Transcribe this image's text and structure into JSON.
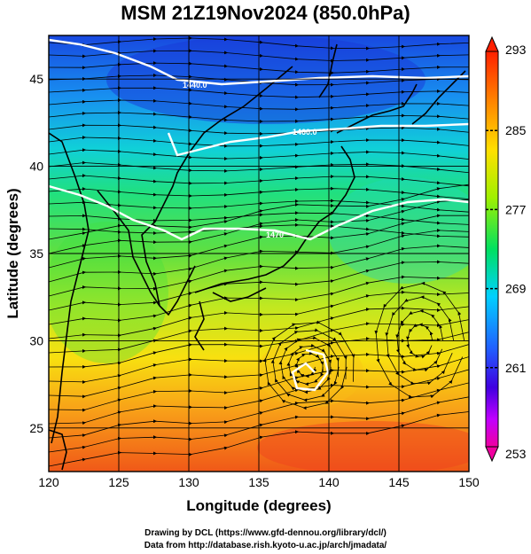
{
  "title": "MSM 21Z19Nov2024 (850.0hPa)",
  "map": {
    "x_axis": {
      "label": "Longitude (degrees)",
      "ticks": [
        120,
        125,
        130,
        135,
        140,
        145,
        150
      ],
      "range": [
        120,
        150
      ]
    },
    "y_axis": {
      "label": "Latitude  (degrees)",
      "ticks": [
        25,
        30,
        35,
        40,
        45
      ],
      "range": [
        22.5,
        47.5
      ]
    },
    "grid": true,
    "field": "temperature (shaded) with streamlines and geopotential height contours",
    "contour_labels": [
      "1440.0",
      "1460.0",
      "1470"
    ],
    "colors": {
      "cold": "#2040e0",
      "mid": "#40e040",
      "warm": "#f08020",
      "hot": "#f02020",
      "coast": "#000000",
      "contour": "#ffffff"
    }
  },
  "colorbar": {
    "ticks": [
      "293",
      "285",
      "277",
      "269",
      "261",
      "253"
    ],
    "min": 253,
    "max": 293,
    "colors": [
      "#f00070",
      "#c000ff",
      "#4000e0",
      "#2060ff",
      "#00d0ff",
      "#00e060",
      "#a0f000",
      "#ffe000",
      "#ff8000",
      "#ff2000"
    ]
  },
  "credit": {
    "line1": "Drawing by DCL (https://www.gfd-dennou.org/library/dcl/)",
    "line2": "Data from http://database.rish.kyoto-u.ac.jp/arch/jmadata/"
  }
}
